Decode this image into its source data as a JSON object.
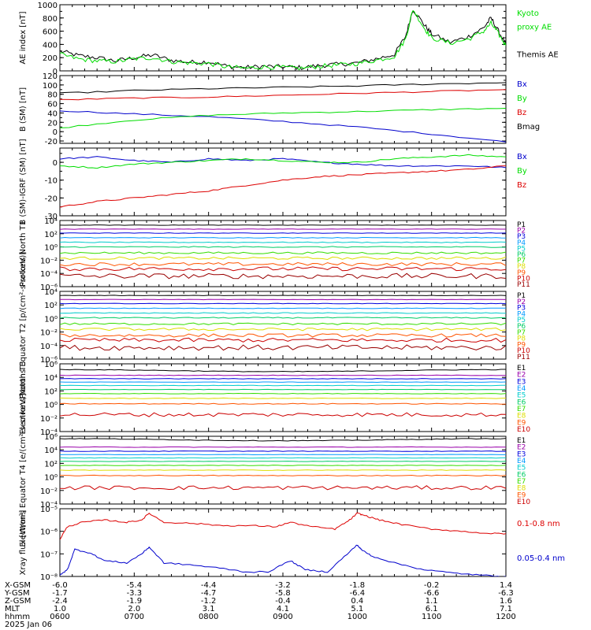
{
  "title": "",
  "colors": {
    "black": "#000000",
    "red": "#dd0000",
    "green": "#00dd00",
    "blue": "#0000cc",
    "ch": [
      "#000000",
      "#9900aa",
      "#0000dd",
      "#0099ff",
      "#00cccc",
      "#00cc66",
      "#33dd00",
      "#dddd00",
      "#ffaa00",
      "#ff5500",
      "#cc0000",
      "#990000"
    ]
  },
  "chart_data": [
    {
      "type": "line",
      "id": "ae",
      "ylabel": "AE index [nT]",
      "ylim": [
        0,
        1000
      ],
      "yticks": [
        0,
        200,
        400,
        600,
        800,
        1000
      ],
      "log": false,
      "legend": [
        {
          "text": "Kyoto",
          "color": "#00dd00"
        },
        {
          "text": "proxy AE",
          "color": "#00dd00"
        },
        {
          "text": "",
          "color": "#000000"
        },
        {
          "text": "Themis AE",
          "color": "#000000"
        }
      ],
      "series": [
        {
          "name": "Themis AE",
          "color": "#000000",
          "x": [
            6.0,
            6.25,
            6.5,
            6.75,
            7.0,
            7.25,
            7.5,
            7.75,
            8.0,
            8.25,
            8.5,
            8.75,
            9.0,
            9.25,
            9.5,
            9.75,
            10.0,
            10.25,
            10.5,
            10.65,
            10.75,
            10.9,
            11.0,
            11.25,
            11.5,
            11.7,
            11.8,
            11.9,
            12.0
          ],
          "y": [
            300,
            230,
            200,
            150,
            200,
            240,
            160,
            130,
            140,
            70,
            50,
            70,
            60,
            50,
            80,
            100,
            120,
            180,
            250,
            520,
            930,
            700,
            560,
            430,
            520,
            650,
            800,
            600,
            400
          ]
        },
        {
          "name": "Kyoto proxy AE",
          "color": "#00dd00",
          "x": [
            6.0,
            6.25,
            6.5,
            6.75,
            7.0,
            7.25,
            7.5,
            7.75,
            8.0,
            8.25,
            8.5,
            8.75,
            9.0,
            9.25,
            9.5,
            9.75,
            10.0,
            10.25,
            10.5,
            10.65,
            10.75,
            10.9,
            11.0,
            11.25,
            11.5,
            11.7,
            11.8,
            11.9,
            12.0
          ],
          "y": [
            250,
            180,
            150,
            140,
            180,
            200,
            140,
            120,
            110,
            60,
            40,
            60,
            50,
            40,
            70,
            90,
            110,
            160,
            220,
            480,
            930,
            650,
            500,
            420,
            480,
            600,
            720,
            560,
            380
          ]
        }
      ]
    },
    {
      "type": "line",
      "id": "bsm",
      "ylabel": "B (SM) [nT]",
      "ylim": [
        -25,
        120
      ],
      "yticks": [
        -20,
        0,
        20,
        40,
        60,
        80,
        100,
        120
      ],
      "log": false,
      "legend": [
        {
          "text": "Bx",
          "color": "#0000cc"
        },
        {
          "text": "By",
          "color": "#00dd00"
        },
        {
          "text": "Bz",
          "color": "#dd0000"
        },
        {
          "text": "Bmag",
          "color": "#000000"
        }
      ],
      "series": [
        {
          "name": "Bx",
          "color": "#0000cc",
          "x": [
            6.0,
            7.0,
            8.0,
            9.0,
            10.0,
            11.0,
            12.0
          ],
          "y": [
            45,
            38,
            32,
            22,
            10,
            -5,
            -22
          ]
        },
        {
          "name": "By",
          "color": "#00dd00",
          "x": [
            6.0,
            7.0,
            8.0,
            9.0,
            10.0,
            11.0,
            12.0
          ],
          "y": [
            8,
            25,
            35,
            40,
            43,
            47,
            50
          ]
        },
        {
          "name": "Bz",
          "color": "#dd0000",
          "x": [
            6.0,
            7.0,
            8.0,
            9.0,
            10.0,
            11.0,
            12.0
          ],
          "y": [
            68,
            72,
            74,
            78,
            82,
            86,
            90
          ]
        },
        {
          "name": "Bmag",
          "color": "#000000",
          "x": [
            6.0,
            7.0,
            8.0,
            9.0,
            10.0,
            11.0,
            12.0
          ],
          "y": [
            82,
            88,
            92,
            95,
            98,
            102,
            105
          ]
        }
      ]
    },
    {
      "type": "line",
      "id": "bdiff",
      "ylabel": "B (SM)-IGRF (SM) [nT]",
      "ylim": [
        -30,
        8
      ],
      "yticks": [
        -30,
        -20,
        -10,
        0
      ],
      "log": false,
      "legend": [
        {
          "text": "Bx",
          "color": "#0000cc"
        },
        {
          "text": "By",
          "color": "#00dd00"
        },
        {
          "text": "Bz",
          "color": "#dd0000"
        }
      ],
      "series": [
        {
          "name": "Bx",
          "color": "#0000cc",
          "x": [
            6.0,
            6.5,
            7.0,
            7.5,
            8.0,
            8.5,
            9.0,
            9.5,
            10.0,
            10.5,
            11.0,
            11.5,
            12.0
          ],
          "y": [
            2,
            3,
            1,
            0,
            2,
            1,
            2,
            0,
            -1,
            -2,
            -2,
            -2,
            -3
          ]
        },
        {
          "name": "By",
          "color": "#00dd00",
          "x": [
            6.0,
            6.5,
            7.0,
            7.5,
            8.0,
            8.5,
            9.0,
            9.5,
            10.0,
            10.5,
            11.0,
            11.5,
            12.0
          ],
          "y": [
            -2,
            -3,
            -1,
            0,
            1,
            2,
            1,
            0,
            0,
            2,
            3,
            4,
            3
          ]
        },
        {
          "name": "Bz",
          "color": "#dd0000",
          "x": [
            6.0,
            6.5,
            7.0,
            7.5,
            8.0,
            8.5,
            9.0,
            9.5,
            10.0,
            10.5,
            11.0,
            11.5,
            12.0
          ],
          "y": [
            -25,
            -22,
            -20,
            -18,
            -16,
            -13,
            -10,
            -8,
            -7,
            -6,
            -5,
            -4,
            -2
          ]
        }
      ]
    },
    {
      "type": "line",
      "id": "pn",
      "ylabel": "Protons North T1",
      "units": "",
      "ylim": [
        -6,
        4
      ],
      "log": true,
      "yticks": [
        {
          "e": -6,
          "t": "10⁻⁶"
        },
        {
          "e": -4,
          "t": "10⁻⁴"
        },
        {
          "e": -2,
          "t": "10⁻²"
        },
        {
          "e": 0,
          "t": "10⁰"
        },
        {
          "e": 2,
          "t": "10²"
        },
        {
          "e": 4,
          "t": "10⁴"
        }
      ],
      "legend": [
        {
          "text": "P1",
          "color": "#000000"
        },
        {
          "text": "P2",
          "color": "#9900aa"
        },
        {
          "text": "P3",
          "color": "#0000dd"
        },
        {
          "text": "P4",
          "color": "#0099ff"
        },
        {
          "text": "P5",
          "color": "#00cccc"
        },
        {
          "text": "P6",
          "color": "#00cc66"
        },
        {
          "text": "P7",
          "color": "#33dd00"
        },
        {
          "text": "P8",
          "color": "#dddd00"
        },
        {
          "text": "P9",
          "color": "#ff5500"
        },
        {
          "text": "P10",
          "color": "#cc0000"
        },
        {
          "text": "P11",
          "color": "#990000"
        }
      ],
      "levels": [
        3.3,
        2.7,
        2.1,
        1.4,
        0.7,
        0.0,
        -0.9,
        -1.7,
        -2.6,
        -3.3,
        -4.4
      ],
      "noise": [
        0.03,
        0.03,
        0.04,
        0.05,
        0.06,
        0.08,
        0.15,
        0.2,
        0.25,
        0.3,
        0.4
      ]
    },
    {
      "type": "line",
      "id": "pe",
      "ylabel": "Protons Equator T2 [p/(cm²-s-sr-keV)]",
      "ylim": [
        -6,
        4
      ],
      "log": true,
      "yticks": [
        {
          "e": -6,
          "t": "10⁻⁶"
        },
        {
          "e": -4,
          "t": "10⁻⁴"
        },
        {
          "e": -2,
          "t": "10⁻²"
        },
        {
          "e": 0,
          "t": "10⁰"
        },
        {
          "e": 2,
          "t": "10²"
        },
        {
          "e": 4,
          "t": "10⁴"
        }
      ],
      "legend": [
        {
          "text": "P1",
          "color": "#000000"
        },
        {
          "text": "P2",
          "color": "#9900aa"
        },
        {
          "text": "P3",
          "color": "#0000dd"
        },
        {
          "text": "P4",
          "color": "#0099ff"
        },
        {
          "text": "P5",
          "color": "#00cccc"
        },
        {
          "text": "P6",
          "color": "#00cc66"
        },
        {
          "text": "P7",
          "color": "#33dd00"
        },
        {
          "text": "P8",
          "color": "#dddd00"
        },
        {
          "text": "P9",
          "color": "#ff5500"
        },
        {
          "text": "P10",
          "color": "#cc0000"
        },
        {
          "text": "P11",
          "color": "#990000"
        }
      ],
      "levels": [
        3.4,
        2.8,
        2.2,
        1.5,
        0.8,
        0.1,
        -0.8,
        -1.6,
        -2.5,
        -3.2,
        -4.3
      ],
      "noise": [
        0.03,
        0.03,
        0.04,
        0.05,
        0.06,
        0.08,
        0.15,
        0.2,
        0.25,
        0.3,
        0.4
      ]
    },
    {
      "type": "line",
      "id": "en",
      "ylabel": "Electrons North T3",
      "ylim": [
        -4,
        6
      ],
      "log": true,
      "yticks": [
        {
          "e": -4,
          "t": "10⁻⁴"
        },
        {
          "e": -2,
          "t": "10⁻²"
        },
        {
          "e": 0,
          "t": "10⁰"
        },
        {
          "e": 2,
          "t": "10²"
        },
        {
          "e": 4,
          "t": "10⁴"
        },
        {
          "e": 6,
          "t": "10⁶"
        }
      ],
      "legend": [
        {
          "text": "E1",
          "color": "#000000"
        },
        {
          "text": "E2",
          "color": "#9900aa"
        },
        {
          "text": "E3",
          "color": "#0000dd"
        },
        {
          "text": "E4",
          "color": "#0099ff"
        },
        {
          "text": "E5",
          "color": "#00cccc"
        },
        {
          "text": "E6",
          "color": "#00cc66"
        },
        {
          "text": "E7",
          "color": "#33dd00"
        },
        {
          "text": "E8",
          "color": "#dddd00"
        },
        {
          "text": "E9",
          "color": "#ff5500"
        },
        {
          "text": "E10",
          "color": "#cc0000"
        }
      ],
      "levels": [
        5.0,
        4.3,
        3.8,
        3.3,
        2.8,
        2.2,
        1.6,
        0.9,
        0.1,
        -1.5
      ],
      "noise": [
        0.05,
        0.04,
        0.04,
        0.03,
        0.03,
        0.03,
        0.04,
        0.05,
        0.06,
        0.3
      ]
    },
    {
      "type": "line",
      "id": "ee",
      "ylabel": "Electrons Equator T4 [e/(cm²-s-sr-keV)]",
      "ylim": [
        -4,
        6
      ],
      "log": true,
      "yticks": [
        {
          "e": -4,
          "t": "10⁻⁴"
        },
        {
          "e": -2,
          "t": "10⁻²"
        },
        {
          "e": 0,
          "t": "10⁰"
        },
        {
          "e": 2,
          "t": "10²"
        },
        {
          "e": 4,
          "t": "10⁴"
        },
        {
          "e": 6,
          "t": "10⁶"
        }
      ],
      "legend": [
        {
          "text": "E1",
          "color": "#000000"
        },
        {
          "text": "E2",
          "color": "#9900aa"
        },
        {
          "text": "E3",
          "color": "#0000dd"
        },
        {
          "text": "E4",
          "color": "#0099ff"
        },
        {
          "text": "E5",
          "color": "#00cccc"
        },
        {
          "text": "E6",
          "color": "#00cc66"
        },
        {
          "text": "E7",
          "color": "#33dd00"
        },
        {
          "text": "E8",
          "color": "#dddd00"
        },
        {
          "text": "E9",
          "color": "#ff5500"
        },
        {
          "text": "E10",
          "color": "#cc0000"
        }
      ],
      "levels": [
        5.5,
        4.4,
        3.8,
        3.3,
        2.8,
        2.3,
        1.7,
        1.0,
        0.2,
        -1.6
      ],
      "noise": [
        0.05,
        0.04,
        0.04,
        0.03,
        0.03,
        0.03,
        0.04,
        0.05,
        0.06,
        0.3
      ]
    },
    {
      "type": "line",
      "id": "xray",
      "ylabel": "Xray flux [W/m²]",
      "ylim": [
        -8,
        -5
      ],
      "log": true,
      "yticks": [
        {
          "e": -8,
          "t": "10⁻⁸"
        },
        {
          "e": -7,
          "t": "10⁻⁷"
        },
        {
          "e": -6,
          "t": "10⁻⁶"
        },
        {
          "e": -5,
          "t": "10⁻⁵"
        }
      ],
      "legend": [
        {
          "text": "0.1-0.8 nm",
          "color": "#dd0000"
        },
        {
          "text": "0.05-0.4 nm",
          "color": "#0000cc"
        }
      ],
      "series": [
        {
          "name": "0.1-0.8 nm",
          "color": "#dd0000",
          "x": [
            6.0,
            6.1,
            6.3,
            6.6,
            6.9,
            7.1,
            7.2,
            7.4,
            7.8,
            8.2,
            8.6,
            8.9,
            9.1,
            9.4,
            9.7,
            9.9,
            10.0,
            10.1,
            10.3,
            10.6,
            11.0,
            11.4,
            11.8,
            12.0
          ],
          "y": [
            -6.35,
            -5.8,
            -5.6,
            -5.5,
            -5.6,
            -5.5,
            -5.2,
            -5.6,
            -5.65,
            -5.75,
            -5.75,
            -5.8,
            -5.6,
            -5.8,
            -5.9,
            -5.5,
            -5.2,
            -5.3,
            -5.5,
            -5.7,
            -5.9,
            -6.0,
            -6.1,
            -6.1
          ]
        },
        {
          "name": "0.05-0.4 nm",
          "color": "#0000cc",
          "x": [
            6.0,
            6.1,
            6.2,
            6.4,
            6.6,
            6.9,
            7.1,
            7.2,
            7.4,
            7.8,
            8.2,
            8.5,
            8.8,
            9.1,
            9.3,
            9.6,
            9.9,
            10.0,
            10.05,
            10.2,
            10.5,
            10.9,
            11.3,
            11.7,
            12.0
          ],
          "y": [
            -7.95,
            -7.7,
            -6.8,
            -6.95,
            -7.3,
            -7.4,
            -7.0,
            -6.7,
            -7.4,
            -7.5,
            -7.65,
            -7.8,
            -7.8,
            -7.3,
            -7.7,
            -7.8,
            -6.9,
            -6.6,
            -6.8,
            -7.1,
            -7.4,
            -7.7,
            -7.85,
            -7.95,
            -8.0
          ]
        }
      ]
    }
  ],
  "x_axis": {
    "xlim": [
      6.0,
      12.0
    ],
    "ticks": [
      6.0,
      7.0,
      8.0,
      9.0,
      10.0,
      11.0,
      12.0
    ],
    "rows": [
      {
        "label": "X-GSM",
        "values": [
          "-6.0",
          "-5.4",
          "-4.4",
          "-3.2",
          "-1.8",
          "-0.2",
          "1.4"
        ]
      },
      {
        "label": "Y-GSM",
        "values": [
          "-1.7",
          "-3.3",
          "-4.7",
          "-5.8",
          "-6.4",
          "-6.6",
          "-6.3"
        ]
      },
      {
        "label": "Z-GSM",
        "values": [
          "-2.4",
          "-1.9",
          "-1.2",
          "-0.4",
          "0.4",
          "1.1",
          "1.6"
        ]
      },
      {
        "label": "MLT",
        "values": [
          "1.0",
          "2.0",
          "3.1",
          "4.1",
          "5.1",
          "6.1",
          "7.1"
        ]
      },
      {
        "label": "hhmm",
        "values": [
          "0600",
          "0700",
          "0800",
          "0900",
          "1000",
          "1100",
          "1200"
        ]
      }
    ],
    "date": "2025 Jan 06"
  }
}
